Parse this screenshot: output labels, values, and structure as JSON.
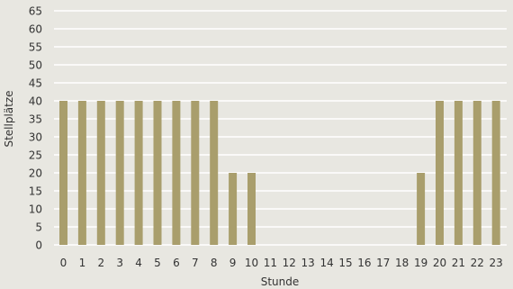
{
  "chart_data": {
    "type": "bar",
    "title": "",
    "xlabel": "Stunde",
    "ylabel": "Stellplätze",
    "categories": [
      "0",
      "1",
      "2",
      "3",
      "4",
      "5",
      "6",
      "7",
      "8",
      "9",
      "10",
      "11",
      "12",
      "13",
      "14",
      "15",
      "16",
      "17",
      "18",
      "19",
      "20",
      "21",
      "22",
      "23"
    ],
    "values": [
      40,
      40,
      40,
      40,
      40,
      40,
      40,
      40,
      40,
      20,
      20,
      0,
      0,
      0,
      0,
      0,
      0,
      0,
      0,
      20,
      40,
      40,
      40,
      40
    ],
    "ylim": [
      0,
      65
    ],
    "yticks": [
      0,
      5,
      10,
      15,
      20,
      25,
      30,
      35,
      40,
      45,
      50,
      55,
      60,
      65
    ],
    "grid": "horizontal",
    "colors": {
      "bar": "#a99e6c",
      "grid": "#ffffff",
      "background": "#e8e7e1",
      "text": "#333333"
    }
  }
}
